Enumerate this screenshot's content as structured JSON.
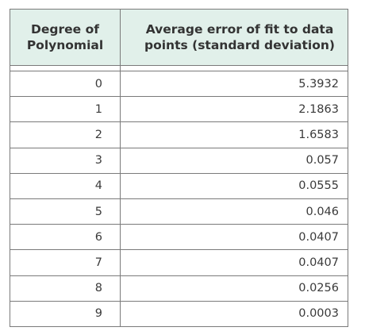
{
  "chart_data": {
    "type": "table",
    "columns": [
      "Degree of Polynomial",
      "Average error of fit to data points (standard deviation)"
    ],
    "rows": [
      [
        "0",
        "5.3932"
      ],
      [
        "1",
        "2.1863"
      ],
      [
        "2",
        "1.6583"
      ],
      [
        "3",
        "0.057"
      ],
      [
        "4",
        "0.0555"
      ],
      [
        "5",
        "0.046"
      ],
      [
        "6",
        "0.0407"
      ],
      [
        "7",
        "0.0407"
      ],
      [
        "8",
        "0.0256"
      ],
      [
        "9",
        "0.0003"
      ]
    ]
  },
  "colors": {
    "header_background": "#e1f0ea",
    "border": "#7a7a7a",
    "text": "#3a3a3a"
  }
}
